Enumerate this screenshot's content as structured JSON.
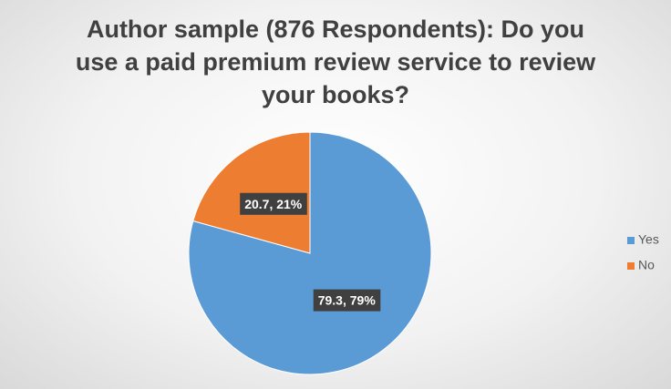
{
  "chart_data": {
    "type": "pie",
    "title": "Author sample (876 Respondents): Do you use a paid premium review service to review your books?",
    "categories": [
      "Yes",
      "No"
    ],
    "values": [
      79.3,
      20.7
    ],
    "value_labels": [
      "79.3, 79%",
      "20.7, 21%"
    ],
    "colors": [
      "#5b9bd5",
      "#ed7d31"
    ],
    "legend": "right"
  }
}
